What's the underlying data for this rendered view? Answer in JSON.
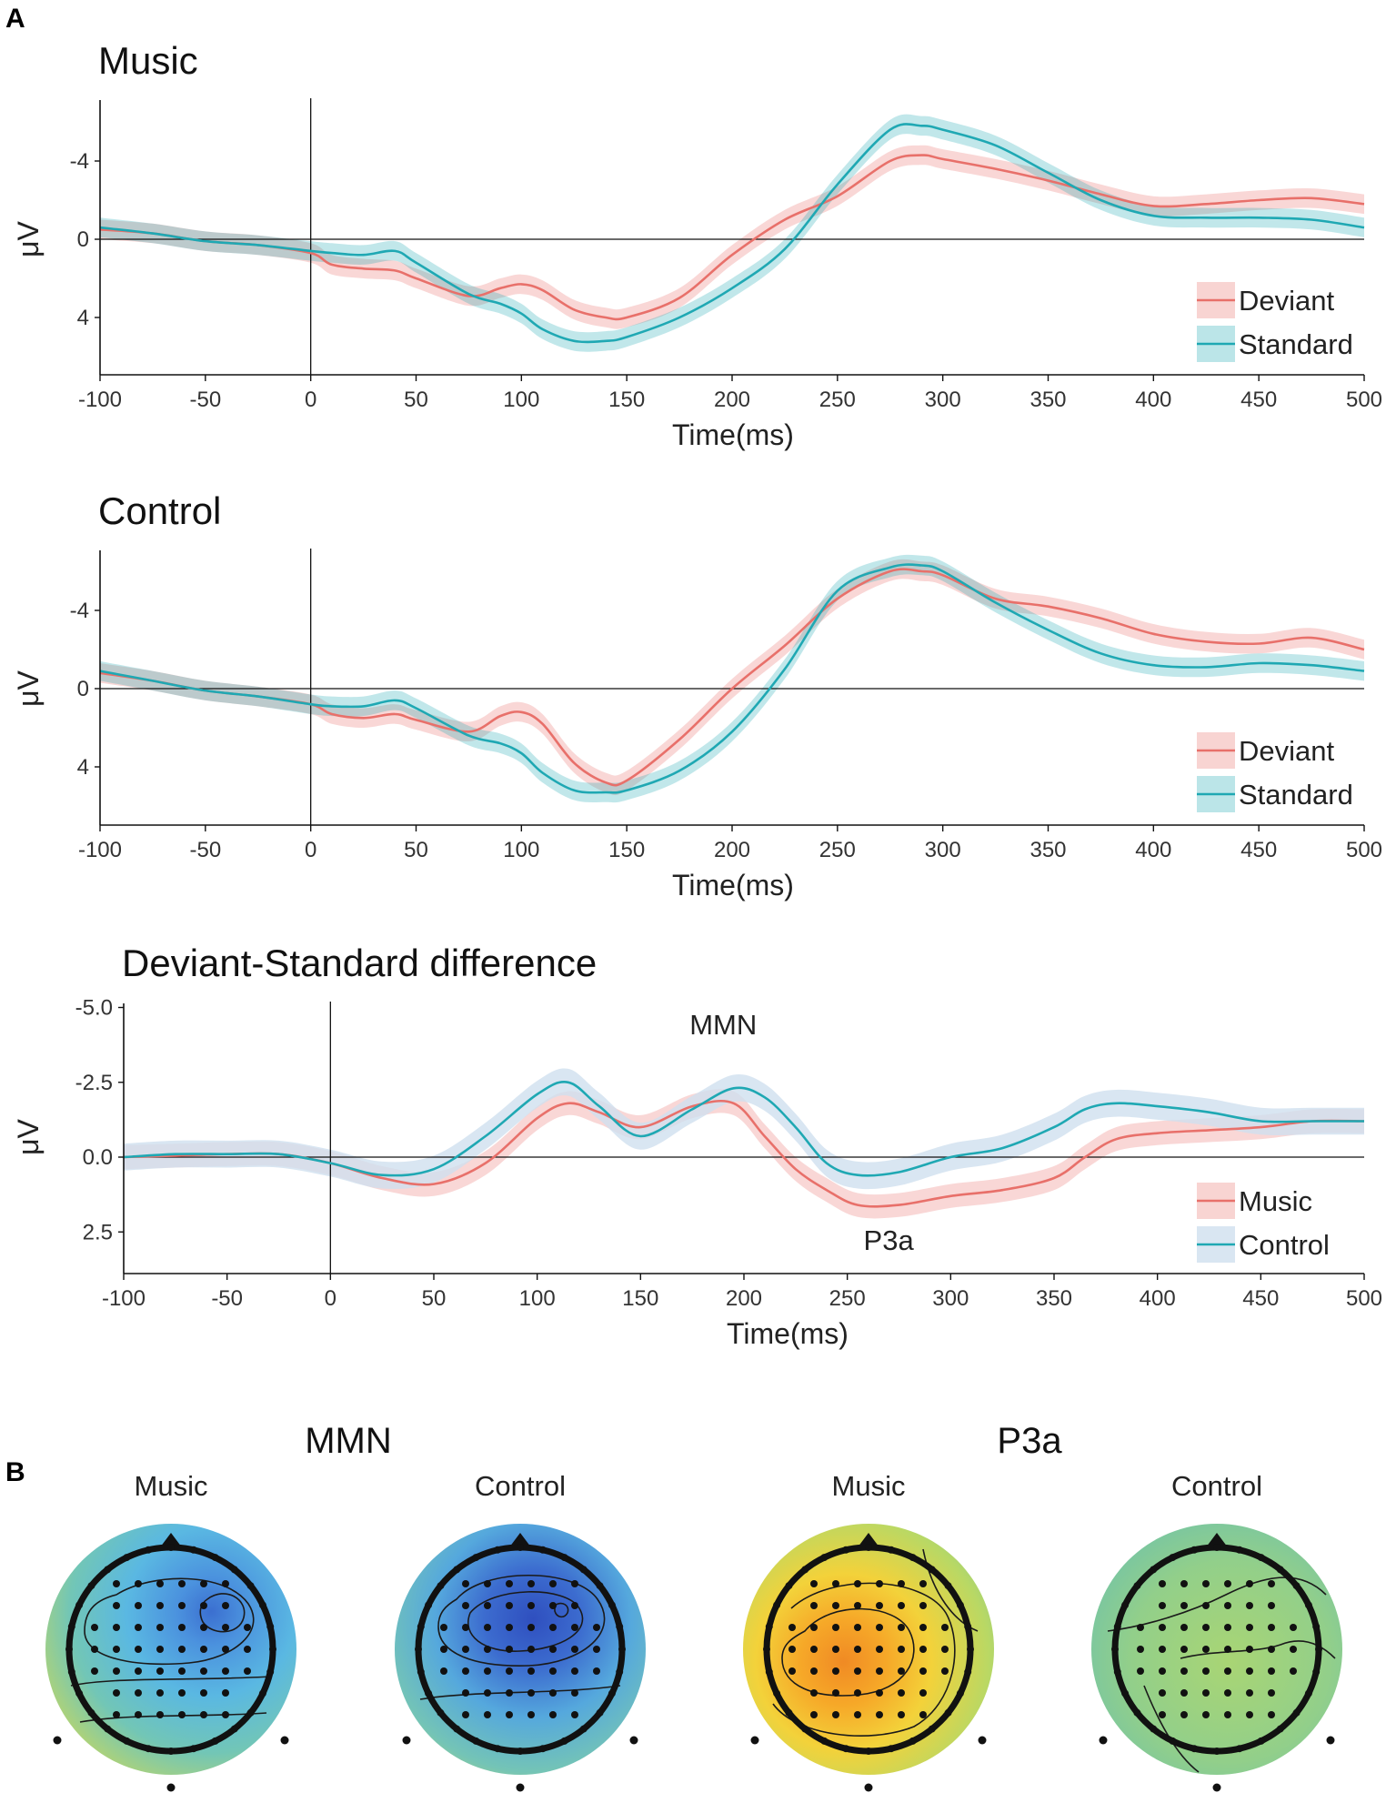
{
  "figure": {
    "panel_a_label": "A",
    "panel_b_label": "B"
  },
  "colors": {
    "deviant": "#e8706a",
    "standard": "#1fa8b3",
    "music": "#e8706a",
    "control": "#1fa8b3",
    "control_band": "#cfe0ef"
  },
  "chart_data": [
    {
      "type": "line",
      "title": "Music",
      "xlabel": "Time(ms)",
      "ylabel": "μV",
      "xlim": [
        -100,
        500
      ],
      "ylim": [
        7,
        -7
      ],
      "xticks": [
        -100,
        -50,
        0,
        50,
        100,
        150,
        200,
        250,
        300,
        350,
        400,
        450,
        500
      ],
      "xtick_labels": [
        "-100",
        "-50",
        "0",
        "50",
        "100",
        "150",
        "200",
        "250",
        "300",
        "350",
        "400",
        "450",
        "500"
      ],
      "yticks": [
        -4,
        0,
        4
      ],
      "ytick_labels": [
        "-4",
        "0",
        "4"
      ],
      "legend": [
        "Deviant",
        "Standard"
      ],
      "legend_position": "bottom-right",
      "series": [
        {
          "name": "Deviant",
          "x": [
            -100,
            -75,
            -50,
            -25,
            0,
            10,
            25,
            40,
            50,
            75,
            90,
            100,
            110,
            125,
            140,
            150,
            175,
            200,
            225,
            250,
            275,
            290,
            300,
            325,
            350,
            375,
            400,
            425,
            450,
            475,
            500
          ],
          "y": [
            -0.5,
            -0.3,
            0.1,
            0.3,
            0.7,
            1.3,
            1.5,
            1.6,
            2.0,
            2.9,
            2.5,
            2.3,
            2.6,
            3.6,
            4.0,
            4.0,
            3.0,
            0.8,
            -1.0,
            -2.2,
            -4.0,
            -4.3,
            -4.1,
            -3.6,
            -3.0,
            -2.3,
            -1.7,
            -1.8,
            -2.0,
            -2.1,
            -1.8
          ],
          "band": 0.5
        },
        {
          "name": "Standard",
          "x": [
            -100,
            -75,
            -50,
            -25,
            0,
            10,
            25,
            40,
            50,
            75,
            90,
            100,
            110,
            125,
            140,
            150,
            175,
            200,
            225,
            250,
            275,
            290,
            300,
            325,
            350,
            375,
            400,
            425,
            450,
            475,
            500
          ],
          "y": [
            -0.6,
            -0.3,
            0.1,
            0.3,
            0.6,
            0.7,
            0.8,
            0.6,
            1.2,
            2.8,
            3.3,
            3.8,
            4.6,
            5.2,
            5.2,
            5.0,
            4.0,
            2.5,
            0.5,
            -2.8,
            -5.6,
            -5.8,
            -5.6,
            -4.8,
            -3.4,
            -2.0,
            -1.2,
            -1.1,
            -1.1,
            -1.0,
            -0.6
          ],
          "band": 0.5
        }
      ]
    },
    {
      "type": "line",
      "title": "Control",
      "xlabel": "Time(ms)",
      "ylabel": "μV",
      "xlim": [
        -100,
        500
      ],
      "ylim": [
        7,
        -7
      ],
      "xticks": [
        -100,
        -50,
        0,
        50,
        100,
        150,
        200,
        250,
        300,
        350,
        400,
        450,
        500
      ],
      "xtick_labels": [
        "-100",
        "-50",
        "0",
        "50",
        "100",
        "150",
        "200",
        "250",
        "300",
        "350",
        "400",
        "450",
        "500"
      ],
      "yticks": [
        -4,
        0,
        4
      ],
      "ytick_labels": [
        "-4",
        "0",
        "4"
      ],
      "legend": [
        "Deviant",
        "Standard"
      ],
      "legend_position": "bottom-right",
      "series": [
        {
          "name": "Deviant",
          "x": [
            -100,
            -75,
            -50,
            -25,
            0,
            10,
            25,
            40,
            50,
            75,
            90,
            100,
            110,
            125,
            140,
            150,
            175,
            200,
            225,
            250,
            275,
            290,
            300,
            325,
            350,
            375,
            400,
            425,
            450,
            475,
            500
          ],
          "y": [
            -0.8,
            -0.4,
            0.1,
            0.4,
            0.8,
            1.3,
            1.5,
            1.3,
            1.6,
            2.2,
            1.4,
            1.2,
            1.8,
            3.8,
            4.8,
            4.7,
            2.6,
            0.0,
            -2.2,
            -4.6,
            -6.0,
            -6.0,
            -5.8,
            -4.6,
            -4.2,
            -3.6,
            -2.8,
            -2.4,
            -2.3,
            -2.6,
            -2.0
          ],
          "band": 0.5
        },
        {
          "name": "Standard",
          "x": [
            -100,
            -75,
            -50,
            -25,
            0,
            10,
            25,
            40,
            50,
            75,
            90,
            100,
            110,
            125,
            140,
            150,
            175,
            200,
            225,
            250,
            275,
            290,
            300,
            325,
            350,
            375,
            400,
            425,
            450,
            475,
            500
          ],
          "y": [
            -0.9,
            -0.4,
            0.1,
            0.4,
            0.8,
            0.9,
            0.9,
            0.6,
            1.0,
            2.4,
            2.8,
            3.3,
            4.3,
            5.2,
            5.3,
            5.2,
            4.2,
            2.2,
            -1.0,
            -5.0,
            -6.2,
            -6.3,
            -6.0,
            -4.4,
            -3.0,
            -1.8,
            -1.2,
            -1.1,
            -1.3,
            -1.2,
            -0.9
          ],
          "band": 0.5
        }
      ]
    },
    {
      "type": "line",
      "title": "Deviant-Standard difference",
      "xlabel": "Time(ms)",
      "ylabel": "μV",
      "xlim": [
        -100,
        500
      ],
      "ylim": [
        4,
        -5
      ],
      "xticks": [
        -100,
        -50,
        0,
        50,
        100,
        150,
        200,
        250,
        300,
        350,
        400,
        450,
        500
      ],
      "xtick_labels": [
        "-100",
        "-50",
        "0",
        "50",
        "100",
        "150",
        "200",
        "250",
        "300",
        "350",
        "400",
        "450",
        "500"
      ],
      "yticks": [
        -5,
        -2.5,
        0,
        2.5
      ],
      "ytick_labels": [
        "-5.0",
        "-2.5",
        "0.0",
        "2.5"
      ],
      "legend": [
        "Music",
        "Control"
      ],
      "legend_position": "bottom-right",
      "annotations": [
        {
          "text": "MMN",
          "x": 190,
          "y": -4.1
        },
        {
          "text": "P3a",
          "x": 270,
          "y": 3.1
        }
      ],
      "series": [
        {
          "name": "Music",
          "x": [
            -100,
            -75,
            -50,
            -25,
            0,
            25,
            50,
            75,
            100,
            115,
            130,
            150,
            175,
            195,
            210,
            225,
            240,
            255,
            275,
            300,
            325,
            350,
            365,
            380,
            400,
            425,
            450,
            475,
            500
          ],
          "y": [
            0.0,
            -0.05,
            -0.1,
            -0.1,
            0.2,
            0.7,
            0.9,
            0.2,
            -1.3,
            -1.8,
            -1.5,
            -1.0,
            -1.7,
            -1.8,
            -0.7,
            0.4,
            1.1,
            1.6,
            1.6,
            1.3,
            1.1,
            0.7,
            0.0,
            -0.6,
            -0.8,
            -0.9,
            -1.0,
            -1.2,
            -1.2
          ],
          "band": 0.4
        },
        {
          "name": "Control",
          "x": [
            -100,
            -75,
            -50,
            -25,
            0,
            25,
            50,
            75,
            100,
            115,
            130,
            150,
            175,
            195,
            210,
            225,
            240,
            255,
            275,
            300,
            325,
            350,
            365,
            380,
            400,
            425,
            450,
            475,
            500
          ],
          "y": [
            0.0,
            -0.1,
            -0.1,
            -0.1,
            0.2,
            0.6,
            0.4,
            -0.7,
            -2.1,
            -2.5,
            -1.7,
            -0.7,
            -1.6,
            -2.3,
            -2.0,
            -1.0,
            0.2,
            0.6,
            0.5,
            0.0,
            -0.3,
            -1.0,
            -1.6,
            -1.8,
            -1.7,
            -1.5,
            -1.2,
            -1.2,
            -1.2
          ],
          "band": 0.45
        }
      ]
    }
  ],
  "topomaps": {
    "groups": [
      {
        "title": "MMN",
        "subtitles": [
          "Music",
          "Control"
        ]
      },
      {
        "title": "P3a",
        "subtitles": [
          "Music",
          "Control"
        ]
      }
    ]
  }
}
